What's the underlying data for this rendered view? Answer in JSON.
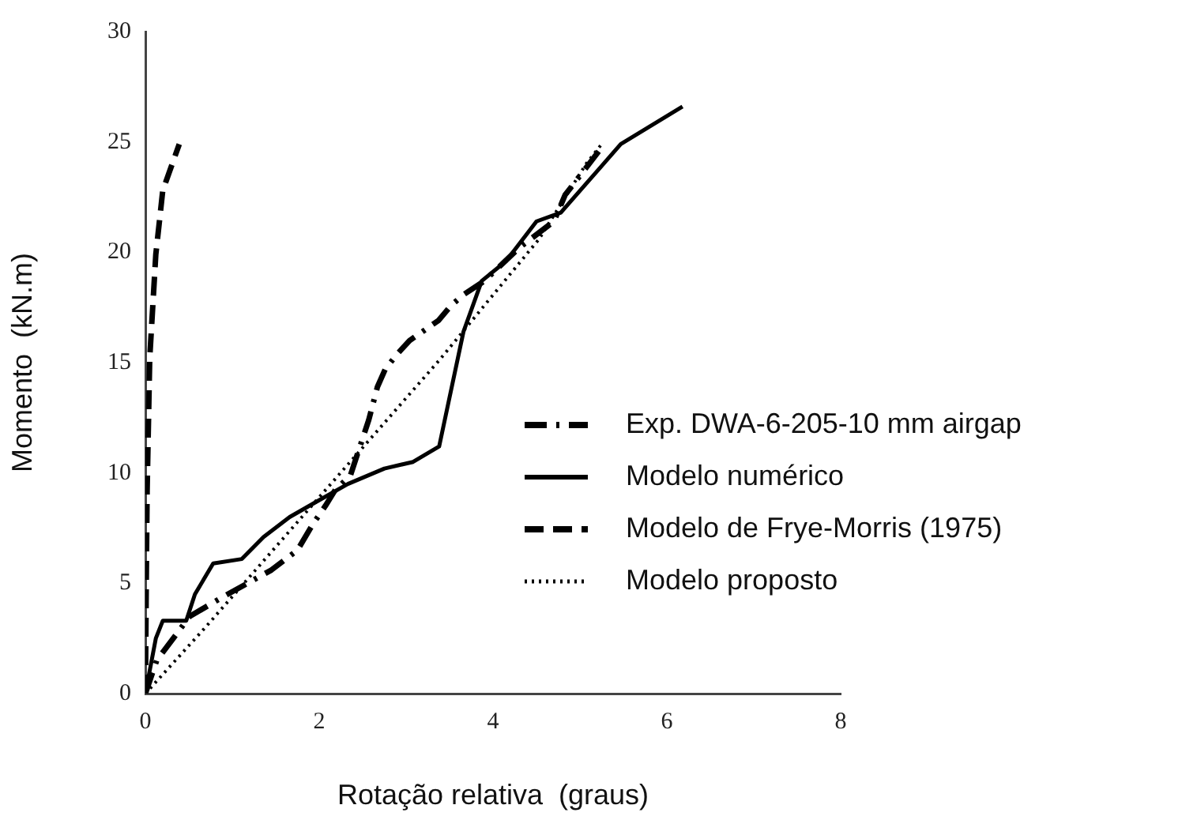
{
  "chart_data": {
    "type": "line",
    "xlabel": "Rotação relativa  (graus)",
    "ylabel": "Momento  (kN.m)",
    "xlim": [
      0,
      8
    ],
    "xticks": [
      0,
      2,
      4,
      6,
      8
    ],
    "ylim": [
      0,
      30
    ],
    "yticks": [
      0,
      5,
      10,
      15,
      20,
      25,
      30
    ],
    "grid": false,
    "legend": "right",
    "marker": "none",
    "series": [
      {
        "name": "Exp. DWA-6-205-10 mm airgap",
        "color": "#000000",
        "line_style": "dashdot",
        "x": [
          0,
          0.13,
          0.51,
          0.9,
          1.45,
          1.75,
          1.93,
          2.07,
          2.18,
          2.36,
          2.57,
          2.67,
          2.76,
          2.9,
          3.04,
          3.37,
          3.52,
          3.67,
          3.9,
          4.3,
          4.7,
          4.83,
          5.28
        ],
        "values": [
          0,
          1.5,
          3.5,
          4.4,
          5.6,
          6.5,
          7.7,
          8.5,
          9.2,
          9.9,
          12.4,
          13.9,
          14.7,
          15.4,
          16,
          16.9,
          17.6,
          18.1,
          18.7,
          20.2,
          21.4,
          22.6,
          24.9
        ]
      },
      {
        "name": "Modelo numérico",
        "color": "#000000",
        "line_style": "solid",
        "x": [
          0,
          0.12,
          0.2,
          0.47,
          0.57,
          0.78,
          1.11,
          1.36,
          1.66,
          1.97,
          2.33,
          2.75,
          3.08,
          3.38,
          3.66,
          3.87,
          4.15,
          4.5,
          4.78,
          5.47,
          6.18
        ],
        "values": [
          0,
          2.5,
          3.3,
          3.3,
          4.5,
          5.9,
          6.1,
          7.1,
          8,
          8.7,
          9.5,
          10.2,
          10.5,
          11.2,
          16.4,
          18.7,
          19.6,
          21.4,
          21.8,
          24.9,
          26.6
        ]
      },
      {
        "name": "Modelo de Frye-Morris (1975)",
        "color": "#000000",
        "line_style": "dashed",
        "x": [
          0,
          0.01,
          0.02,
          0.05,
          0.12,
          0.2,
          0.39
        ],
        "values": [
          0,
          5,
          9.2,
          15.2,
          19.9,
          22.8,
          24.9
        ]
      },
      {
        "name": "Modelo proposto",
        "color": "#000000",
        "line_style": "dotted",
        "x": [
          0,
          0.69,
          2,
          3.38,
          4.53,
          5.07,
          5.27
        ],
        "values": [
          0,
          3,
          8.9,
          15.1,
          20.6,
          24,
          25
        ]
      }
    ]
  }
}
